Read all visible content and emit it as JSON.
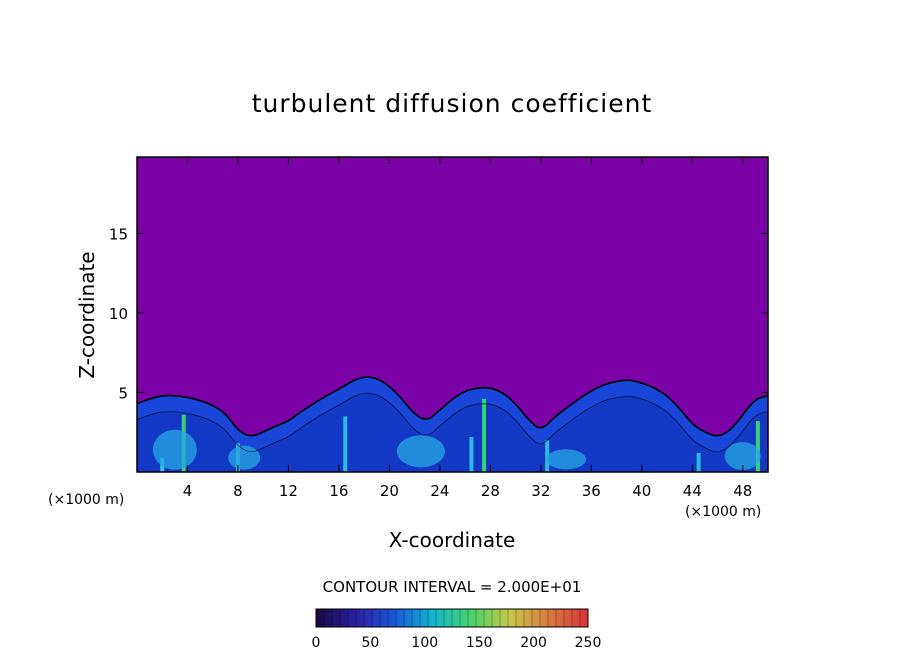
{
  "chart_data": {
    "type": "heatmap",
    "title": "turbulent diffusion coefficient",
    "xlabel": "X-coordinate",
    "ylabel": "Z-coordinate",
    "x_unit": "(×1000 m)",
    "y_unit": "(×1000 m)",
    "x_ticks": [
      4,
      8,
      12,
      16,
      20,
      24,
      28,
      32,
      36,
      40,
      44,
      48
    ],
    "y_ticks": [
      5,
      10,
      15
    ],
    "xlim": [
      0,
      50
    ],
    "ylim": [
      0,
      19.8
    ],
    "contour_interval_text": "CONTOUR INTERVAL = 2.000E+01",
    "colorbar": {
      "ticks": [
        0,
        50,
        100,
        150,
        200,
        250
      ],
      "range": [
        0,
        250
      ],
      "colors": [
        "#1a0840",
        "#2a1fa0",
        "#1a56d8",
        "#10b4d0",
        "#4ad36a",
        "#c7c84a",
        "#d77a3e",
        "#d9323a"
      ]
    },
    "background_color": "#7a02a6",
    "turbulent_layer_top_profile": {
      "x": [
        0,
        1,
        2,
        3,
        4,
        5,
        6,
        7,
        8,
        9,
        10,
        11,
        12,
        13,
        14,
        15,
        16,
        17,
        18,
        19,
        20,
        21,
        22,
        23,
        24,
        25,
        26,
        27,
        28,
        29,
        30,
        31,
        32,
        33,
        34,
        35,
        36,
        37,
        38,
        39,
        40,
        41,
        42,
        43,
        44,
        45,
        46,
        47,
        48,
        49,
        50
      ],
      "z": [
        4.3,
        4.6,
        4.8,
        4.8,
        4.7,
        4.5,
        4.2,
        3.7,
        2.6,
        2.2,
        2.5,
        2.9,
        3.2,
        3.8,
        4.3,
        4.8,
        5.2,
        5.7,
        6.0,
        5.9,
        5.4,
        4.6,
        3.6,
        3.2,
        3.9,
        4.6,
        5.1,
        5.3,
        5.3,
        5.0,
        4.3,
        3.3,
        2.6,
        3.4,
        4.0,
        4.6,
        5.1,
        5.5,
        5.7,
        5.8,
        5.6,
        5.3,
        4.8,
        4.0,
        3.0,
        2.5,
        2.2,
        2.6,
        3.6,
        4.6,
        4.8
      ]
    }
  }
}
